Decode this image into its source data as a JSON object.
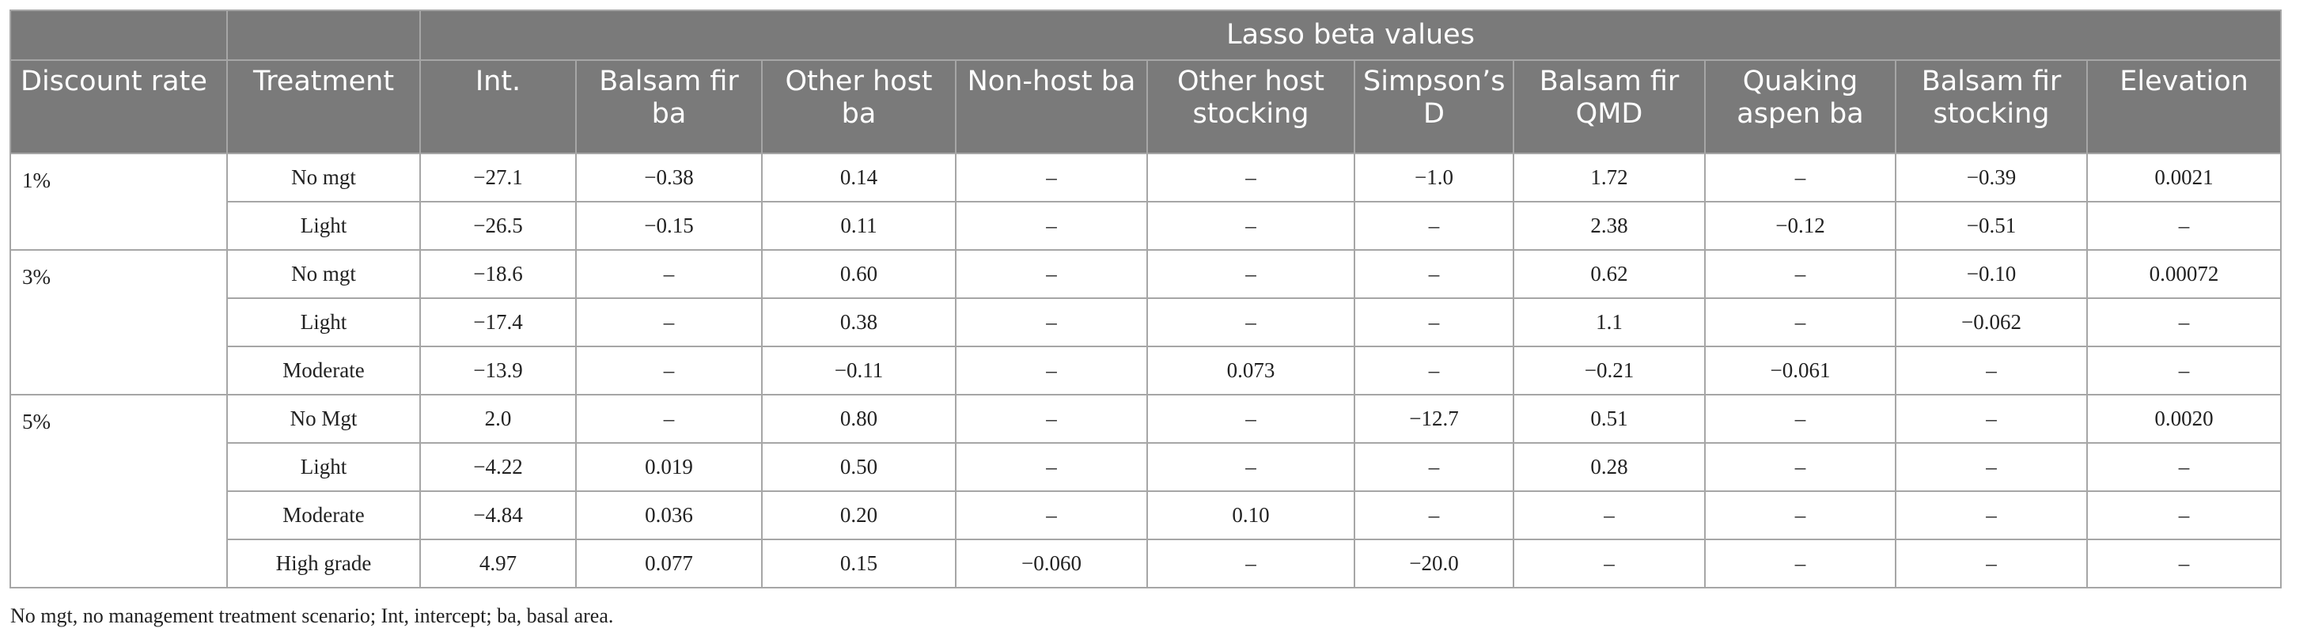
{
  "header": {
    "group_label": "Lasso beta values",
    "columns": [
      "Discount rate",
      "Treatment",
      "Int.",
      "Balsam fir ba",
      "Other host ba",
      "Non-host ba",
      "Other host stocking",
      "Simpson’s D",
      "Balsam fir QMD",
      "Quaking aspen ba",
      "Balsam fir stocking",
      "Elevation"
    ]
  },
  "groups": [
    {
      "rate": "1%",
      "rows": [
        {
          "treatment": "No mgt",
          "values": [
            "−27.1",
            "−0.38",
            "0.14",
            "–",
            "–",
            "−1.0",
            "1.72",
            "–",
            "−0.39",
            "0.0021"
          ]
        },
        {
          "treatment": "Light",
          "values": [
            "−26.5",
            "−0.15",
            "0.11",
            "–",
            "–",
            "–",
            "2.38",
            "−0.12",
            "−0.51",
            "–"
          ]
        }
      ]
    },
    {
      "rate": "3%",
      "rows": [
        {
          "treatment": "No mgt",
          "values": [
            "−18.6",
            "–",
            "0.60",
            "–",
            "–",
            "–",
            "0.62",
            "–",
            "−0.10",
            "0.00072"
          ]
        },
        {
          "treatment": "Light",
          "values": [
            "−17.4",
            "–",
            "0.38",
            "–",
            "–",
            "–",
            "1.1",
            "–",
            "−0.062",
            "–"
          ]
        },
        {
          "treatment": "Moderate",
          "values": [
            "−13.9",
            "–",
            "−0.11",
            "–",
            "0.073",
            "–",
            "−0.21",
            "−0.061",
            "–",
            "–"
          ]
        }
      ]
    },
    {
      "rate": "5%",
      "rows": [
        {
          "treatment": "No Mgt",
          "values": [
            "2.0",
            "–",
            "0.80",
            "–",
            "–",
            "−12.7",
            "0.51",
            "–",
            "–",
            "0.0020"
          ]
        },
        {
          "treatment": "Light",
          "values": [
            "−4.22",
            "0.019",
            "0.50",
            "–",
            "–",
            "–",
            "0.28",
            "–",
            "–",
            "–"
          ]
        },
        {
          "treatment": "Moderate",
          "values": [
            "−4.84",
            "0.036",
            "0.20",
            "–",
            "0.10",
            "–",
            "–",
            "–",
            "–",
            "–"
          ]
        },
        {
          "treatment": "High grade",
          "values": [
            "4.97",
            "0.077",
            "0.15",
            "−0.060",
            "–",
            "−20.0",
            "–",
            "–",
            "–",
            "–"
          ]
        }
      ]
    }
  ],
  "footnote": "No mgt, no management treatment scenario; Int, intercept; ba, basal area."
}
